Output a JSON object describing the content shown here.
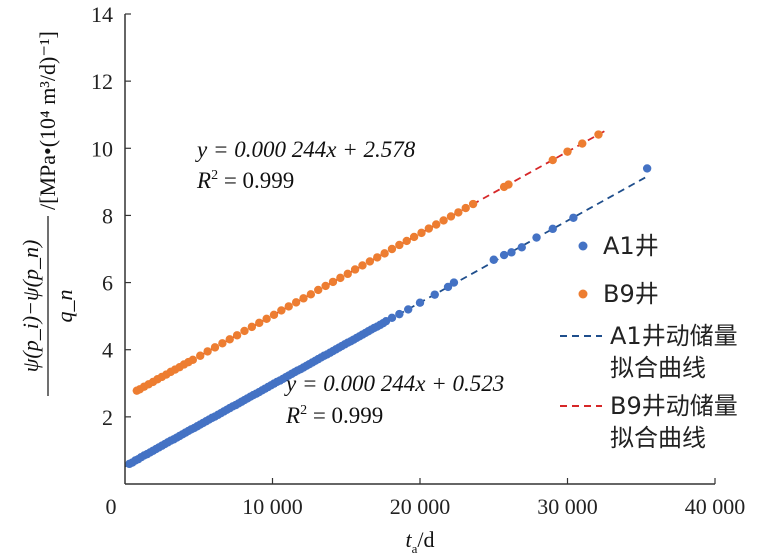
{
  "chart_data": {
    "type": "scatter",
    "title": "",
    "xlabel": "t_a/d",
    "xlabel_main": "t",
    "xlabel_sub": "a",
    "xlabel_unit": "/d",
    "ylabel": "ψ(p_i)−ψ(p_n) / q_n /[MPa•(10^4 m^3/d)^−1]",
    "ylabel_num": "ψ(p_i)−ψ(p_n)",
    "ylabel_den": "q_n",
    "ylabel_unit": "/[MPa•(10⁴ m³/d)⁻¹]",
    "xlim": [
      0,
      40000
    ],
    "ylim": [
      0,
      14
    ],
    "x_ticks": [
      0,
      10000,
      20000,
      30000,
      40000
    ],
    "x_tick_labels": [
      "0",
      "10 000",
      "20 000",
      "30 000",
      "40 000"
    ],
    "y_ticks": [
      2,
      4,
      6,
      8,
      10,
      12,
      14
    ],
    "y_tick_labels": [
      "2",
      "4",
      "6",
      "8",
      "10",
      "12",
      "14"
    ],
    "legend_position": "right",
    "series": [
      {
        "name": "A1井",
        "kind": "points",
        "color": "#4472C4",
        "slope": 0.000244,
        "intercept": 0.523,
        "x_range": [
          0,
          35500
        ],
        "x": [
          300,
          500,
          700,
          900,
          1100,
          1300,
          1500,
          1700,
          1900,
          2100,
          2300,
          2500,
          2700,
          2900,
          3100,
          3300,
          3500,
          3700,
          3900,
          4100,
          4300,
          4500,
          4700,
          4900,
          5100,
          5300,
          5500,
          5700,
          5900,
          6100,
          6300,
          6500,
          6700,
          6900,
          7100,
          7300,
          7500,
          7700,
          7900,
          8100,
          8300,
          8500,
          8700,
          8900,
          9100,
          9300,
          9500,
          9700,
          9900,
          10100,
          10300,
          10500,
          10700,
          10900,
          11100,
          11300,
          11500,
          11700,
          11900,
          12100,
          12300,
          12500,
          12700,
          12900,
          13100,
          13300,
          13500,
          13700,
          13900,
          14100,
          14300,
          14500,
          14700,
          14900,
          15100,
          15300,
          15500,
          15700,
          15900,
          16100,
          16300,
          16500,
          16700,
          16900,
          17100,
          17300,
          17500,
          17700,
          18100,
          18600,
          19200,
          20000,
          21000,
          21900,
          22300,
          25000,
          25700,
          26200,
          26900,
          27900,
          29000,
          30400,
          35400
        ],
        "y": [
          0.6,
          0.64,
          0.7,
          0.74,
          0.8,
          0.85,
          0.89,
          0.94,
          0.99,
          1.04,
          1.09,
          1.14,
          1.19,
          1.24,
          1.29,
          1.33,
          1.38,
          1.43,
          1.48,
          1.53,
          1.58,
          1.63,
          1.67,
          1.72,
          1.77,
          1.82,
          1.87,
          1.92,
          1.97,
          2.01,
          2.06,
          2.11,
          2.16,
          2.21,
          2.26,
          2.31,
          2.35,
          2.4,
          2.45,
          2.5,
          2.55,
          2.6,
          2.65,
          2.69,
          2.74,
          2.79,
          2.84,
          2.89,
          2.94,
          2.99,
          3.04,
          3.08,
          3.13,
          3.18,
          3.23,
          3.28,
          3.33,
          3.38,
          3.42,
          3.47,
          3.52,
          3.57,
          3.62,
          3.67,
          3.72,
          3.77,
          3.82,
          3.86,
          3.91,
          3.96,
          4.01,
          4.06,
          4.11,
          4.16,
          4.21,
          4.25,
          4.3,
          4.35,
          4.4,
          4.45,
          4.5,
          4.55,
          4.6,
          4.65,
          4.69,
          4.74,
          4.79,
          4.85,
          4.95,
          5.06,
          5.2,
          5.4,
          5.64,
          5.87,
          6.0,
          6.68,
          6.82,
          6.9,
          7.05,
          7.34,
          7.6,
          7.93,
          9.4
        ]
      },
      {
        "name": "B9井",
        "kind": "points",
        "color": "#ED7D31",
        "slope": 0.000244,
        "intercept": 2.578,
        "x_range": [
          800,
          32500
        ],
        "x": [
          800,
          1000,
          1300,
          1600,
          1900,
          2200,
          2500,
          2800,
          3100,
          3400,
          3700,
          4000,
          4300,
          4600,
          5100,
          5600,
          6100,
          6600,
          7100,
          7600,
          8100,
          8600,
          9100,
          9600,
          10100,
          10600,
          11100,
          11600,
          12100,
          12600,
          13100,
          13600,
          14100,
          14600,
          15100,
          15600,
          16100,
          16600,
          17100,
          17600,
          18100,
          18600,
          19100,
          19600,
          20100,
          20600,
          21100,
          21600,
          22100,
          22600,
          23100,
          23600,
          25700,
          26000,
          29000,
          30000,
          31000,
          32100
        ],
        "y": [
          2.78,
          2.82,
          2.9,
          2.97,
          3.04,
          3.12,
          3.19,
          3.26,
          3.34,
          3.41,
          3.48,
          3.56,
          3.63,
          3.7,
          3.82,
          3.95,
          4.07,
          4.19,
          4.31,
          4.43,
          4.56,
          4.68,
          4.8,
          4.92,
          5.04,
          5.17,
          5.29,
          5.41,
          5.53,
          5.65,
          5.78,
          5.9,
          6.02,
          6.14,
          6.26,
          6.39,
          6.51,
          6.63,
          6.75,
          6.87,
          7.0,
          7.12,
          7.24,
          7.36,
          7.48,
          7.61,
          7.73,
          7.85,
          7.97,
          8.09,
          8.22,
          8.34,
          8.85,
          8.92,
          9.65,
          9.9,
          10.14,
          10.41
        ]
      },
      {
        "name": "A1井动储量",
        "name_line2": "拟合曲线",
        "kind": "fit",
        "color": "#1F4E8C",
        "fit_of": 0
      },
      {
        "name": "B9井动储量",
        "name_line2": "拟合曲线",
        "kind": "fit",
        "color": "#D62728",
        "fit_of": 1
      }
    ],
    "annotations": [
      {
        "series": "B9井",
        "equation": "y = 0.000 244x + 2.578",
        "r2_label": "R",
        "r2_sup": "2",
        "r2_value": " = 0.999"
      },
      {
        "series": "A1井",
        "equation": "y = 0.000 244x + 0.523",
        "r2_label": "R",
        "r2_sup": "2",
        "r2_value": " = 0.999"
      }
    ]
  }
}
